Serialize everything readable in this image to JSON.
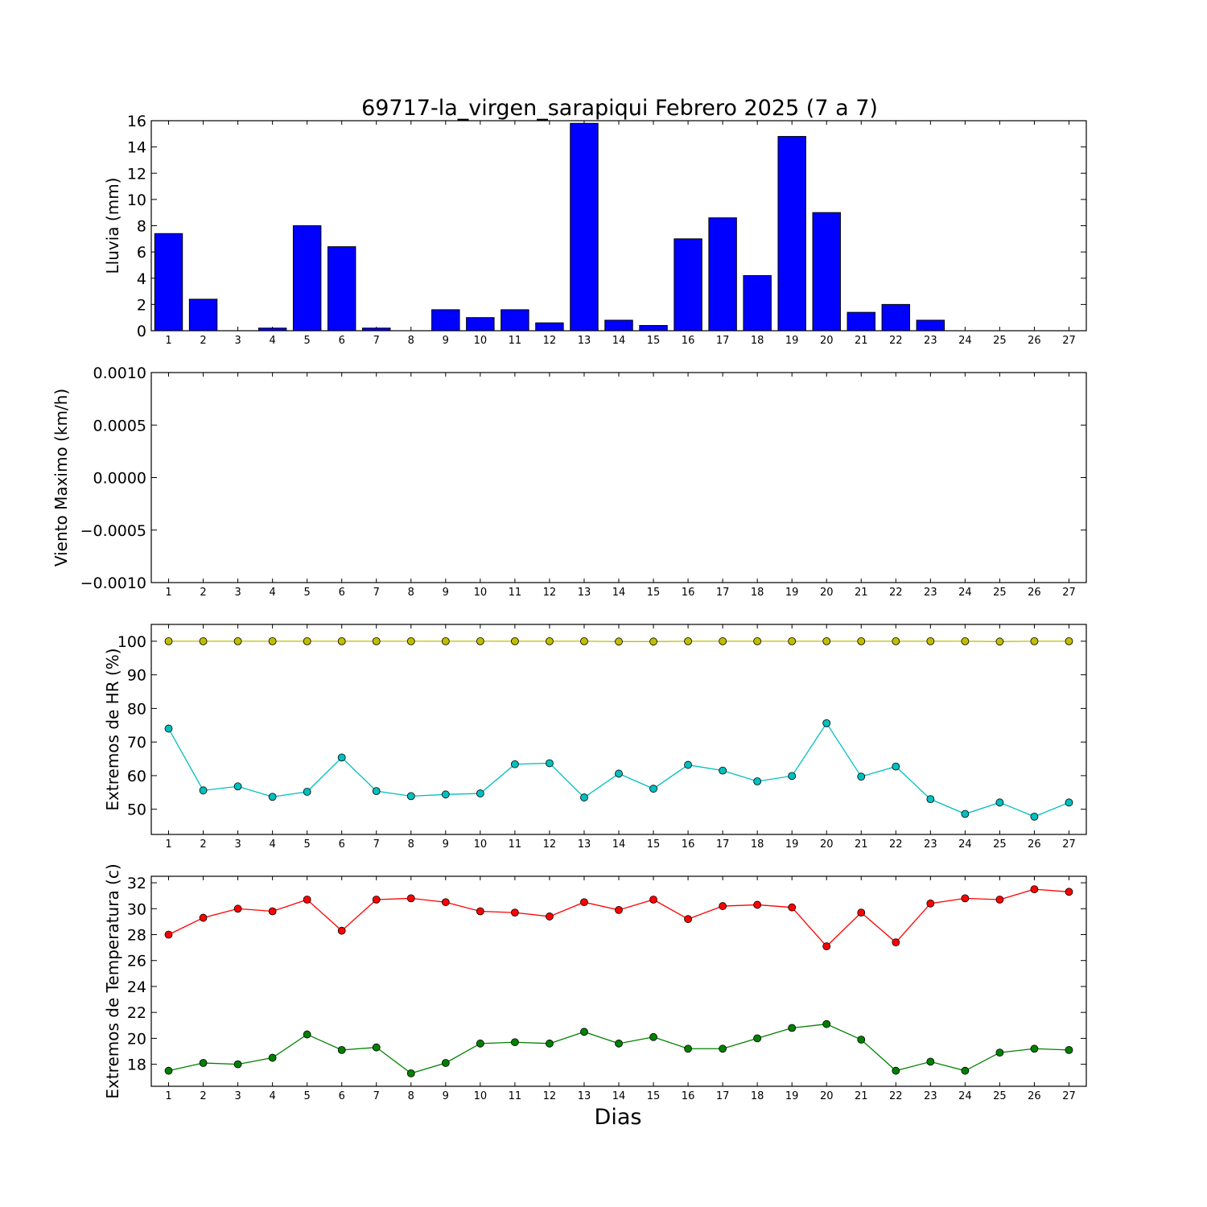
{
  "figure": {
    "title": "69717-la_virgen_sarapiqui Febrero 2025  (7 a 7)",
    "xlabel": "Dias"
  },
  "chart_data": [
    {
      "type": "bar",
      "ylabel": "Lluvia (mm)",
      "ylim": [
        0,
        16
      ],
      "yticks": [
        0,
        2,
        4,
        6,
        8,
        10,
        12,
        14,
        16
      ],
      "ytick_labels": [
        "0",
        "2",
        "4",
        "6",
        "8",
        "10",
        "12",
        "14",
        "16"
      ],
      "categories": [
        1,
        2,
        3,
        4,
        5,
        6,
        7,
        8,
        9,
        10,
        11,
        12,
        13,
        14,
        15,
        16,
        17,
        18,
        19,
        20,
        21,
        22,
        23,
        24,
        25,
        26,
        27
      ],
      "xtick_labels": [
        "1",
        "2",
        "3",
        "4",
        "5",
        "6",
        "7",
        "8",
        "9",
        "10",
        "11",
        "12",
        "13",
        "14",
        "15",
        "16",
        "17",
        "18",
        "19",
        "20",
        "21",
        "22",
        "23",
        "24",
        "25",
        "26",
        "27"
      ],
      "values": [
        7.4,
        2.4,
        0,
        0.2,
        8.0,
        6.4,
        0.2,
        0,
        1.6,
        1.0,
        1.6,
        0.6,
        15.8,
        0.8,
        0.4,
        7.0,
        8.6,
        4.2,
        14.8,
        9.0,
        1.4,
        2.0,
        0.8,
        0,
        0,
        0,
        0
      ],
      "color": "#0000ff"
    },
    {
      "type": "line",
      "ylabel": "Viento Maximo (km/h)",
      "ylim": [
        -0.001,
        0.001
      ],
      "yticks": [
        -0.001,
        -0.0005,
        0,
        0.0005,
        0.001
      ],
      "ytick_labels": [
        "−0.0010",
        "−0.0005",
        "0.0000",
        "0.0005",
        "0.0010"
      ],
      "x": [
        1,
        2,
        3,
        4,
        5,
        6,
        7,
        8,
        9,
        10,
        11,
        12,
        13,
        14,
        15,
        16,
        17,
        18,
        19,
        20,
        21,
        22,
        23,
        24,
        25,
        26,
        27
      ],
      "xtick_labels": [
        "1",
        "2",
        "3",
        "4",
        "5",
        "6",
        "7",
        "8",
        "9",
        "10",
        "11",
        "12",
        "13",
        "14",
        "15",
        "16",
        "17",
        "18",
        "19",
        "20",
        "21",
        "22",
        "23",
        "24",
        "25",
        "26",
        "27"
      ],
      "series": []
    },
    {
      "type": "line",
      "ylabel": "Extremos de HR (%)",
      "ylim": [
        42.5,
        105
      ],
      "yticks": [
        50,
        60,
        70,
        80,
        90,
        100
      ],
      "ytick_labels": [
        "50",
        "60",
        "70",
        "80",
        "90",
        "100"
      ],
      "x": [
        1,
        2,
        3,
        4,
        5,
        6,
        7,
        8,
        9,
        10,
        11,
        12,
        13,
        14,
        15,
        16,
        17,
        18,
        19,
        20,
        21,
        22,
        23,
        24,
        25,
        26,
        27
      ],
      "xtick_labels": [
        "1",
        "2",
        "3",
        "4",
        "5",
        "6",
        "7",
        "8",
        "9",
        "10",
        "11",
        "12",
        "13",
        "14",
        "15",
        "16",
        "17",
        "18",
        "19",
        "20",
        "21",
        "22",
        "23",
        "24",
        "25",
        "26",
        "27"
      ],
      "series": [
        {
          "color": "#bfbf00",
          "values": [
            100,
            100,
            100,
            100,
            100,
            100,
            100,
            100,
            100,
            100,
            100,
            100,
            100,
            99.9,
            99.9,
            100,
            100,
            100,
            100,
            100,
            100,
            100,
            100,
            100,
            99.9,
            100,
            100
          ]
        },
        {
          "color": "#00bfbf",
          "values": [
            74,
            55.6,
            56.8,
            53.7,
            55.2,
            65.4,
            55.4,
            53.9,
            54.4,
            54.7,
            63.4,
            63.7,
            53.5,
            60.6,
            56.1,
            63.2,
            61.5,
            58.3,
            59.9,
            75.6,
            59.7,
            62.7,
            53,
            48.6,
            52,
            47.8,
            52
          ]
        }
      ]
    },
    {
      "type": "line",
      "ylabel": "Extremos de Temperatura (c)",
      "ylim": [
        16.3,
        32.5
      ],
      "yticks": [
        18,
        20,
        22,
        24,
        26,
        28,
        30,
        32
      ],
      "ytick_labels": [
        "18",
        "20",
        "22",
        "24",
        "26",
        "28",
        "30",
        "32"
      ],
      "x": [
        1,
        2,
        3,
        4,
        5,
        6,
        7,
        8,
        9,
        10,
        11,
        12,
        13,
        14,
        15,
        16,
        17,
        18,
        19,
        20,
        21,
        22,
        23,
        24,
        25,
        26,
        27
      ],
      "xtick_labels": [
        "1",
        "2",
        "3",
        "4",
        "5",
        "6",
        "7",
        "8",
        "9",
        "10",
        "11",
        "12",
        "13",
        "14",
        "15",
        "16",
        "17",
        "18",
        "19",
        "20",
        "21",
        "22",
        "23",
        "24",
        "25",
        "26",
        "27"
      ],
      "series": [
        {
          "color": "#ff0000",
          "values": [
            28,
            29.3,
            30,
            29.8,
            30.7,
            28.3,
            30.7,
            30.8,
            30.5,
            29.8,
            29.7,
            29.4,
            30.5,
            29.9,
            30.7,
            29.2,
            30.2,
            30.3,
            30.1,
            27.1,
            29.7,
            27.4,
            30.4,
            30.8,
            30.7,
            31.5,
            31.3
          ]
        },
        {
          "color": "#008000",
          "values": [
            17.5,
            18.1,
            18,
            18.5,
            20.3,
            19.1,
            19.3,
            17.3,
            18.1,
            19.6,
            19.7,
            19.6,
            20.5,
            19.6,
            20.1,
            19.2,
            19.2,
            20,
            20.8,
            21.1,
            19.9,
            17.5,
            18.2,
            17.5,
            18.9,
            19.2,
            19.1
          ]
        }
      ]
    }
  ]
}
